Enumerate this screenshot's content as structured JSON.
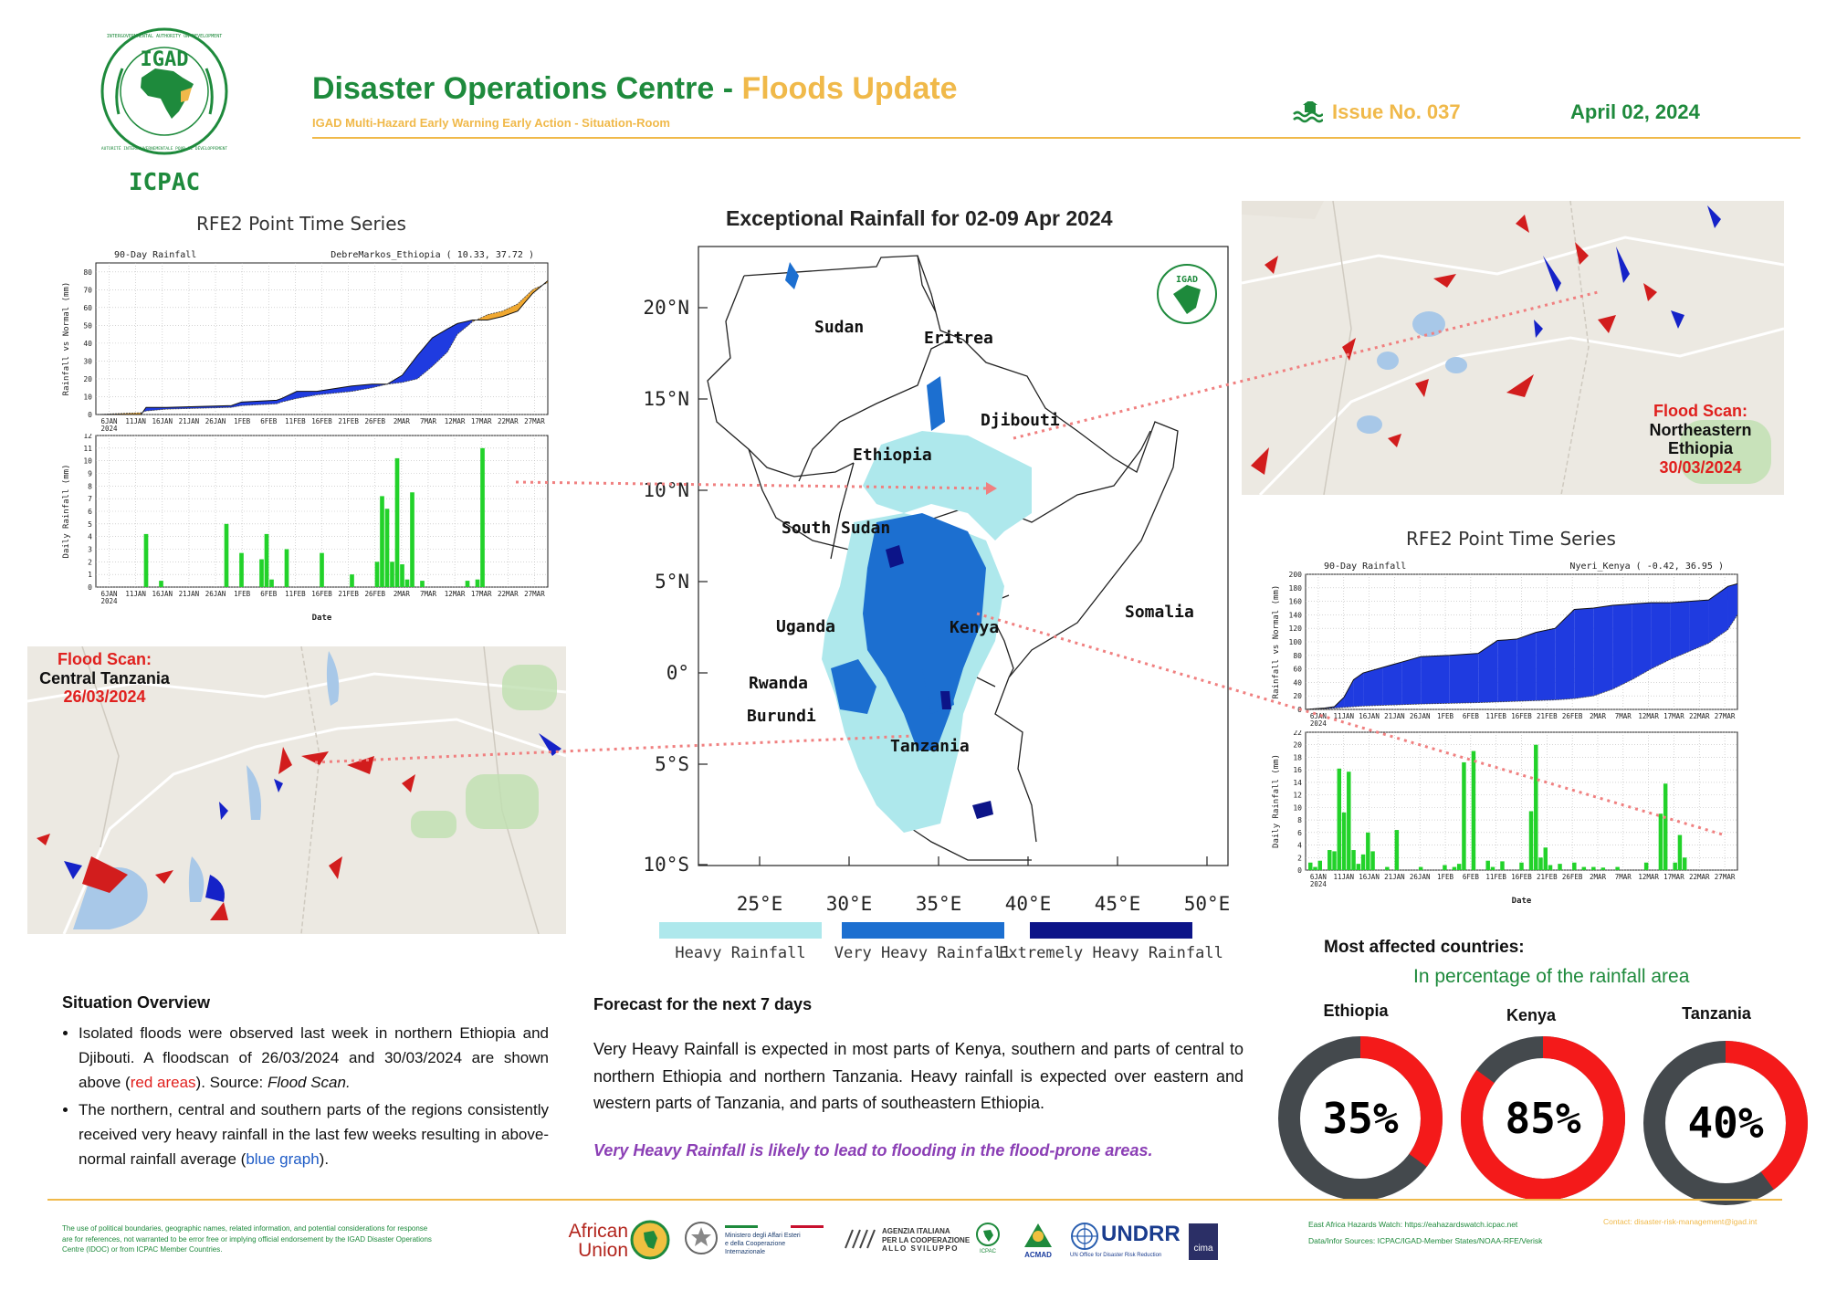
{
  "header": {
    "logo_top_text": "INTERGOVERNMENTAL AUTHORITY ON DEVELOPMENT",
    "logo_bottom_text": "AUTORITÉ INTERGOUVERNEMENTALE POUR LE DÉVELOPPEMENT",
    "logo_name": "IGAD",
    "org": "ICPAC",
    "title_main": "Disaster Operations Centre - ",
    "title_accent": "Floods Update",
    "subtitle": "IGAD Multi-Hazard Early Warning Early Action - Situation-Room",
    "issue": "Issue No. 037",
    "date": "April 02, 2024",
    "issue_icon": "flood-wave-icon",
    "colors": {
      "green": "#1e8a3c",
      "gold": "#f0b94a"
    }
  },
  "main_map": {
    "title": "Exceptional Rainfall for 02-09 Apr 2024",
    "lat_labels": [
      "20°N",
      "15°N",
      "10°N",
      "5°N",
      "0°",
      "5°S",
      "10°S"
    ],
    "lon_labels": [
      "25°E",
      "30°E",
      "35°E",
      "40°E",
      "45°E",
      "50°E"
    ],
    "countries": [
      "Sudan",
      "Eritrea",
      "Djibouti",
      "Ethiopia",
      "South Sudan",
      "Somalia",
      "Uganda",
      "Kenya",
      "Rwanda",
      "Burundi",
      "Tanzania"
    ],
    "logo_text": "IGAD",
    "legend": [
      {
        "label": "Heavy Rainfall",
        "color": "#aee8ec"
      },
      {
        "label": "Very Heavy Rainfall",
        "color": "#1c6fd0"
      },
      {
        "label": "Extremely Heavy Rainfall",
        "color": "#0c1488"
      }
    ]
  },
  "flood_scans": {
    "ne_ethiopia": {
      "title": "Flood Scan:",
      "region": "Northeastern Ethiopia",
      "date": "30/03/2024"
    },
    "tanzania": {
      "title": "Flood Scan:",
      "region": "Central Tanzania",
      "date": "26/03/2024"
    }
  },
  "chart_data": [
    {
      "type": "area",
      "panel_title": "RFE2 Point Time Series",
      "title": "90-Day Rainfall",
      "location": "DebreMarkos_Ethiopia ( 10.33, 37.72 )",
      "ylabel": "Rainfall vs Normal (mm)",
      "ylim": [
        0,
        85
      ],
      "yticks": [
        "0",
        "10",
        "20",
        "30",
        "40",
        "50",
        "60",
        "70",
        "80"
      ],
      "x_dates": [
        "6JAN",
        "11JAN",
        "16JAN",
        "21JAN",
        "26JAN",
        "1FEB",
        "6FEB",
        "11FEB",
        "16FEB",
        "21FEB",
        "26FEB",
        "2MAR",
        "7MAR",
        "12MAR",
        "17MAR",
        "22MAR",
        "27MAR"
      ],
      "x_year": "2024",
      "days": [
        0,
        9,
        10,
        14,
        27,
        29,
        36,
        37,
        40,
        44,
        51,
        55,
        58,
        61,
        64,
        67,
        70,
        72,
        75,
        78,
        81,
        84,
        87,
        90
      ],
      "rainfall": [
        0,
        0,
        4,
        4,
        5,
        7,
        8,
        9,
        13,
        13,
        16,
        17,
        17,
        22,
        33,
        43,
        48,
        51,
        53,
        53,
        55,
        58,
        68,
        75
      ],
      "normal": [
        0,
        1,
        2,
        3,
        4,
        5,
        6,
        7,
        9,
        11,
        13,
        15,
        17,
        18,
        20,
        27,
        35,
        45,
        52,
        56,
        58,
        62,
        70,
        74
      ]
    },
    {
      "type": "bar",
      "title": "",
      "ylabel": "Daily Rainfall (mm)",
      "xlabel": "Date",
      "ylim": [
        0,
        12
      ],
      "yticks": [
        "0",
        "1",
        "2",
        "3",
        "4",
        "5",
        "6",
        "7",
        "8",
        "9",
        "10",
        "11",
        "12"
      ],
      "x_dates": [
        "6JAN",
        "11JAN",
        "16JAN",
        "21JAN",
        "26JAN",
        "1FEB",
        "6FEB",
        "11FEB",
        "16FEB",
        "21FEB",
        "26FEB",
        "2MAR",
        "7MAR",
        "12MAR",
        "17MAR",
        "22MAR",
        "27MAR"
      ],
      "x_year": "2024",
      "days": [
        10,
        13,
        26,
        29,
        33,
        34,
        35,
        38,
        45,
        51,
        56,
        57,
        58,
        59,
        60,
        61,
        62,
        63,
        65,
        74,
        76,
        77
      ],
      "values": [
        4.2,
        0.5,
        5.0,
        2.7,
        2.2,
        4.2,
        0.6,
        3.0,
        2.7,
        1.0,
        2.0,
        7.2,
        6.2,
        2.0,
        10.2,
        1.8,
        0.6,
        7.5,
        0.5,
        0.5,
        0.6,
        11.0
      ]
    },
    {
      "type": "area",
      "panel_title": "RFE2 Point Time Series",
      "title": "90-Day Rainfall",
      "location": "Nyeri_Kenya ( -0.42, 36.95 )",
      "ylabel": "Rainfall vs Normal (mm)",
      "ylim": [
        0,
        200
      ],
      "yticks": [
        "0",
        "20",
        "40",
        "60",
        "80",
        "100",
        "120",
        "140",
        "160",
        "180",
        "200"
      ],
      "x_dates": [
        "6JAN",
        "11JAN",
        "16JAN",
        "21JAN",
        "26JAN",
        "1FEB",
        "6FEB",
        "11FEB",
        "16FEB",
        "21FEB",
        "26FEB",
        "2MAR",
        "7MAR",
        "12MAR",
        "17MAR",
        "22MAR",
        "27MAR"
      ],
      "x_year": "2024",
      "days": [
        0,
        4,
        6,
        8,
        10,
        12,
        16,
        20,
        24,
        30,
        36,
        40,
        44,
        48,
        52,
        56,
        60,
        64,
        68,
        72,
        76,
        80,
        84,
        88,
        90
      ],
      "rainfall": [
        0,
        2,
        4,
        18,
        44,
        54,
        62,
        70,
        78,
        80,
        83,
        102,
        104,
        114,
        120,
        148,
        150,
        154,
        156,
        158,
        158,
        160,
        162,
        182,
        186
      ],
      "normal": [
        0,
        1,
        2,
        3,
        4,
        5,
        6,
        7,
        8,
        9,
        10,
        11,
        12,
        13,
        14,
        16,
        20,
        30,
        44,
        60,
        74,
        86,
        98,
        118,
        140
      ]
    },
    {
      "type": "bar",
      "title": "",
      "ylabel": "Daily Rainfall (mm)",
      "xlabel": "Date",
      "ylim": [
        0,
        22
      ],
      "yticks": [
        "0",
        "2",
        "4",
        "6",
        "8",
        "10",
        "12",
        "14",
        "16",
        "18",
        "20",
        "22"
      ],
      "x_dates": [
        "6JAN",
        "11JAN",
        "16JAN",
        "21JAN",
        "26JAN",
        "1FEB",
        "6FEB",
        "11FEB",
        "16FEB",
        "21FEB",
        "26FEB",
        "2MAR",
        "7MAR",
        "12MAR",
        "17MAR",
        "22MAR",
        "27MAR"
      ],
      "x_year": "2024",
      "days": [
        1,
        2,
        3,
        5,
        6,
        7,
        8,
        9,
        10,
        11,
        12,
        13,
        14,
        17,
        19,
        24,
        29,
        31,
        32,
        33,
        35,
        38,
        39,
        41,
        45,
        47,
        48,
        49,
        50,
        51,
        53,
        56,
        58,
        60,
        62,
        65,
        71,
        74,
        75,
        77,
        78,
        79
      ],
      "values": [
        1.2,
        0.5,
        1.5,
        3.2,
        3.0,
        16.2,
        9.2,
        15.7,
        3.2,
        1.0,
        2.5,
        6.0,
        3.0,
        0.5,
        6.4,
        0.5,
        0.8,
        0.5,
        1.0,
        17.2,
        19.0,
        1.5,
        0.5,
        1.4,
        1.2,
        9.4,
        20.0,
        2.0,
        3.6,
        0.8,
        1.0,
        1.2,
        0.5,
        0.5,
        0.4,
        0.5,
        1.2,
        9.0,
        13.8,
        1.2,
        5.6,
        2.0
      ]
    }
  ],
  "situation": {
    "title": "Situation Overview",
    "b1_a": "Isolated floods were observed last week in northern Ethiopia and Djibouti. A floodscan of 26/03/2024 and 30/03/2024 are shown above (",
    "b1_red": "red areas",
    "b1_b": "). Source: ",
    "b1_src": "Flood Scan.",
    "b2_a": "The northern, central and southern parts of the regions consistently received very heavy rainfall in the last few weeks resulting in above-normal rainfall average (",
    "b2_blue": "blue graph",
    "b2_b": ")."
  },
  "forecast": {
    "title": "Forecast for the next 7 days",
    "text": "Very Heavy Rainfall is expected in most parts of Kenya, southern and parts of central to northern Ethiopia and northern Tanzania. Heavy rainfall is expected over eastern and western parts of Tanzania, and parts of southeastern Ethiopia.",
    "warning": "Very Heavy Rainfall is likely to lead to flooding in the flood-prone areas."
  },
  "affected": {
    "title": "Most affected countries:",
    "subtitle": "In percentage of the rainfall area",
    "countries": [
      {
        "name": "Ethiopia",
        "percent": 35,
        "label": "35%"
      },
      {
        "name": "Kenya",
        "percent": 85,
        "label": "85%"
      },
      {
        "name": "Tanzania",
        "percent": 40,
        "label": "40%"
      }
    ],
    "colors": {
      "fill": "#f41a1a",
      "track": "#44494d"
    }
  },
  "footer": {
    "disclaimer": "The use of political boundaries, geographic names, related information, and potential considerations for response are for references, not warranted to be error free or implying official endorsement by the IGAD Disaster Operations Centre (IDOC) or from ICPAC Member Countries.",
    "watch": "East Africa Hazards Watch: https://eahazardswatch.icpac.net",
    "sources": "Data/Infor Sources:  ICPAC/IGAD-Member States/NOAA-RFE/Verisk",
    "contact": "Contact: disaster-risk-management@igad.int",
    "partners": {
      "au_1": "African",
      "au_2": "Union",
      "maeci_1": "Ministero degli Affari Esteri",
      "maeci_2": "e della Cooperazione Internazionale",
      "aics_1": "AGENZIA ITALIANA",
      "aics_2": "PER LA COOPERAZIONE",
      "aics_3": "ALLO SVILUPPO",
      "icpac": "ICPAC",
      "acmad": "ACMAD",
      "undrr": "UNDRR",
      "undrr_sub": "UN Office for Disaster Risk Reduction",
      "cima": "cima"
    }
  }
}
